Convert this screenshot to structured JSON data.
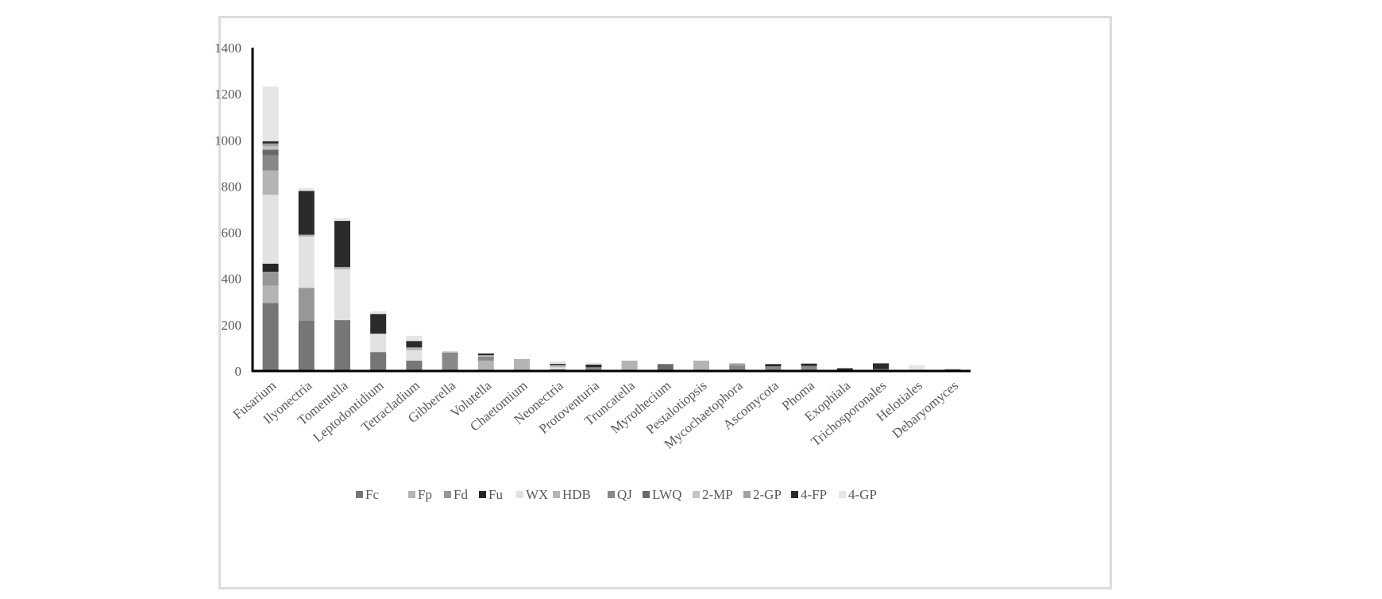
{
  "chart_data": {
    "type": "bar",
    "stacked": true,
    "title": "",
    "xlabel": "",
    "ylabel": "",
    "ylim": [
      0,
      1400
    ],
    "yticks": [
      0,
      200,
      400,
      600,
      800,
      1000,
      1200,
      1400
    ],
    "grid": false,
    "legend_position": "bottom",
    "categories": [
      "Fusarium",
      "Ilyonectria",
      "Tomentella",
      "Leptodontidium",
      "Tetracladium",
      "Gibberella",
      "Volutella",
      "Chaetomium",
      "Neonectria",
      "Protoventuria",
      "Truncatella",
      "Myrothecium",
      "Pestalotiopsis",
      "Mycochaetophora",
      "Ascomycota",
      "Phoma",
      "Exophiala",
      "Trichosporonales",
      "Helotiales",
      "Debaryomyces"
    ],
    "series": [
      {
        "name": "Fc",
        "color": "#767676",
        "values": [
          295,
          218,
          220,
          82,
          45,
          0,
          0,
          0,
          8,
          8,
          0,
          0,
          0,
          0,
          0,
          0,
          0,
          0,
          0,
          8
        ]
      },
      {
        "name": "Fp",
        "color": "#b4b4b4",
        "values": [
          75,
          0,
          0,
          0,
          0,
          0,
          0,
          0,
          0,
          0,
          0,
          0,
          0,
          0,
          0,
          0,
          0,
          0,
          0,
          0
        ]
      },
      {
        "name": "Fd",
        "color": "#979797",
        "values": [
          60,
          142,
          0,
          0,
          0,
          0,
          0,
          0,
          0,
          0,
          0,
          0,
          0,
          0,
          0,
          0,
          0,
          0,
          0,
          0
        ]
      },
      {
        "name": "Fu",
        "color": "#262626",
        "values": [
          35,
          0,
          0,
          0,
          0,
          0,
          0,
          0,
          0,
          0,
          0,
          0,
          0,
          0,
          0,
          0,
          0,
          0,
          0,
          0
        ]
      },
      {
        "name": "WX",
        "color": "#e2e2e2",
        "values": [
          298,
          222,
          220,
          78,
          45,
          0,
          0,
          0,
          8,
          0,
          0,
          0,
          0,
          0,
          0,
          0,
          0,
          0,
          0,
          0
        ]
      },
      {
        "name": "HDB",
        "color": "#b4b4b4",
        "values": [
          105,
          8,
          10,
          2,
          12,
          0,
          45,
          52,
          10,
          0,
          45,
          0,
          45,
          0,
          0,
          0,
          0,
          0,
          0,
          0
        ]
      },
      {
        "name": "QJ",
        "color": "#888888",
        "values": [
          65,
          0,
          0,
          0,
          0,
          80,
          18,
          0,
          0,
          8,
          0,
          0,
          0,
          25,
          20,
          22,
          0,
          8,
          0,
          0
        ]
      },
      {
        "name": "LWQ",
        "color": "#696969",
        "values": [
          25,
          0,
          0,
          0,
          0,
          0,
          0,
          0,
          0,
          0,
          0,
          30,
          0,
          0,
          0,
          0,
          0,
          0,
          0,
          0
        ]
      },
      {
        "name": "2-MP",
        "color": "#c4c4c4",
        "values": [
          15,
          0,
          0,
          0,
          0,
          5,
          5,
          0,
          0,
          0,
          0,
          0,
          0,
          0,
          0,
          0,
          0,
          0,
          0,
          0
        ]
      },
      {
        "name": "2-GP",
        "color": "#a2a2a2",
        "values": [
          12,
          0,
          0,
          0,
          0,
          0,
          0,
          0,
          0,
          0,
          0,
          0,
          0,
          8,
          0,
          0,
          0,
          0,
          0,
          0
        ]
      },
      {
        "name": "4-FP",
        "color": "#2b2b2b",
        "values": [
          10,
          190,
          200,
          85,
          28,
          0,
          8,
          0,
          5,
          12,
          0,
          0,
          0,
          0,
          10,
          10,
          12,
          25,
          0,
          0
        ]
      },
      {
        "name": "4-GP",
        "color": "#e6e6e6",
        "values": [
          237,
          12,
          12,
          12,
          22,
          0,
          0,
          0,
          12,
          8,
          0,
          0,
          0,
          0,
          0,
          0,
          0,
          0,
          25,
          0
        ]
      }
    ]
  }
}
